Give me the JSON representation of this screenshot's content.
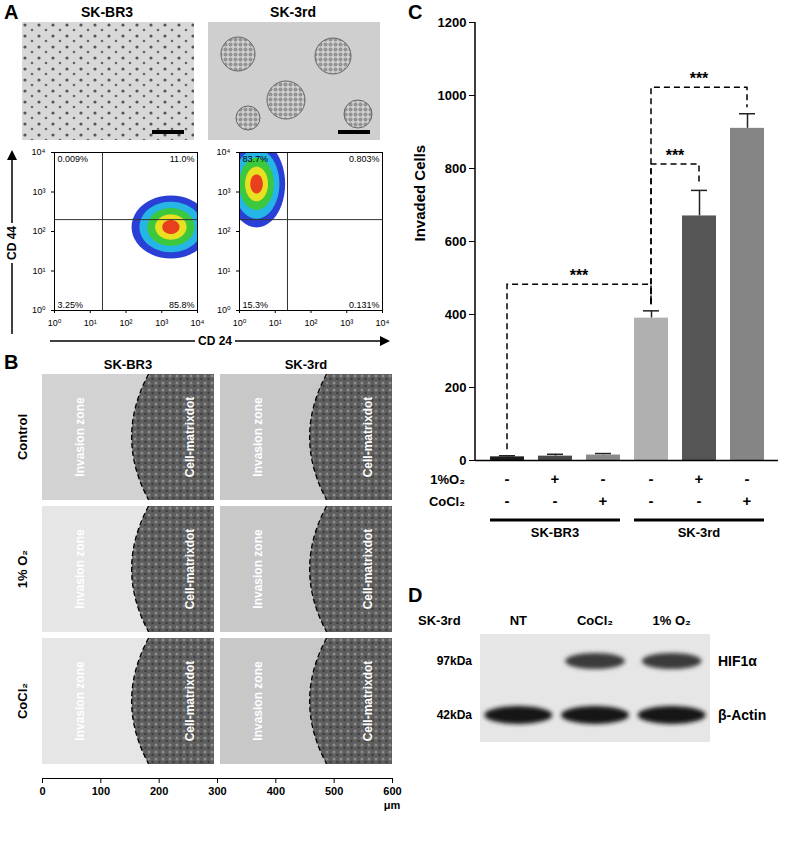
{
  "chart_data": {
    "type": "bar",
    "panel_label": "C",
    "categories": [
      null,
      null,
      null,
      null,
      null,
      null
    ],
    "values": [
      10,
      12,
      15,
      390,
      670,
      910
    ],
    "errors": [
      3,
      5,
      4,
      20,
      70,
      40
    ],
    "colors": [
      "#1c1c1c",
      "#4a4a4a",
      "#8a8a8a",
      "#b0b0b0",
      "#555555",
      "#858585"
    ],
    "ylabel": "Invaded Cells",
    "ylim": [
      0,
      1200
    ],
    "yticks": [
      0,
      200,
      400,
      600,
      800,
      1000,
      1200
    ],
    "conditions": [
      {
        "name": "1%O₂",
        "marks": [
          "-",
          "+",
          "-",
          "-",
          "+",
          "-"
        ]
      },
      {
        "name": "CoCl₂",
        "marks": [
          "-",
          "-",
          "+",
          "-",
          "-",
          "+"
        ]
      }
    ],
    "groups": [
      {
        "name": "SK-BR3",
        "positions": [
          0,
          1,
          2
        ]
      },
      {
        "name": "SK-3rd",
        "positions": [
          3,
          4,
          5
        ]
      }
    ],
    "significance": [
      {
        "between": [
          0,
          3
        ],
        "label": "***"
      },
      {
        "between": [
          3,
          4
        ],
        "label": "***"
      },
      {
        "between": [
          3,
          5
        ],
        "label": "***"
      }
    ]
  },
  "panel_A": {
    "label": "A",
    "columns": [
      "SK-BR3",
      "SK-3rd"
    ],
    "flow": {
      "xlabel": "CD 24",
      "ylabel": "CD 44",
      "log": true,
      "xlim": [
        1,
        10000
      ],
      "ylim": [
        1,
        10000
      ],
      "xticks": [
        {
          "value": 1,
          "label": "10⁰"
        },
        {
          "value": 10,
          "label": "10¹"
        },
        {
          "value": 100,
          "label": "10²"
        },
        {
          "value": 1000,
          "label": "10³"
        },
        {
          "value": 10000,
          "label": "10⁴"
        }
      ],
      "yticks": [
        {
          "value": 1,
          "label": "10⁰"
        },
        {
          "value": 10,
          "label": "10¹"
        },
        {
          "value": 100,
          "label": "10²"
        },
        {
          "value": 1000,
          "label": "10³"
        },
        {
          "value": 10000,
          "label": "10⁴"
        }
      ],
      "plots": [
        {
          "gate": [
            22,
            200
          ],
          "quadrants": [
            "0.009%",
            "11.0%",
            "3.25%",
            "85.8%"
          ],
          "population": {
            "center": [
              1800,
              130
            ],
            "spread_decades": [
              1.1,
              0.8
            ]
          }
        },
        {
          "gate": [
            22,
            200
          ],
          "quadrants": [
            "83.7%",
            "0.803%",
            "15.3%",
            "0.131%"
          ],
          "population": {
            "center": [
              3,
              1600
            ],
            "spread_decades": [
              0.8,
              1.1
            ]
          }
        }
      ]
    }
  },
  "panel_B": {
    "label": "B",
    "columns": [
      "SK-BR3",
      "SK-3rd"
    ],
    "rows": [
      "Control",
      "1% O₂",
      "CoCl₂"
    ],
    "zones": [
      "Invasion zone",
      "Cell-matrixdot"
    ],
    "scale_axis": {
      "xlim": [
        0,
        600
      ],
      "xticks": [
        0,
        100,
        200,
        300,
        400,
        500,
        600
      ],
      "unit": "μm"
    }
  },
  "panel_D": {
    "label": "D",
    "cell_line": "SK-3rd",
    "lanes": [
      "NT",
      "CoCl₂",
      "1% O₂"
    ],
    "rows": [
      {
        "size": "97kDa",
        "protein": "HIF1α",
        "bands": [
          false,
          true,
          true
        ]
      },
      {
        "size": "42kDa",
        "protein": "β-Actin",
        "bands": [
          true,
          true,
          true
        ]
      }
    ]
  }
}
